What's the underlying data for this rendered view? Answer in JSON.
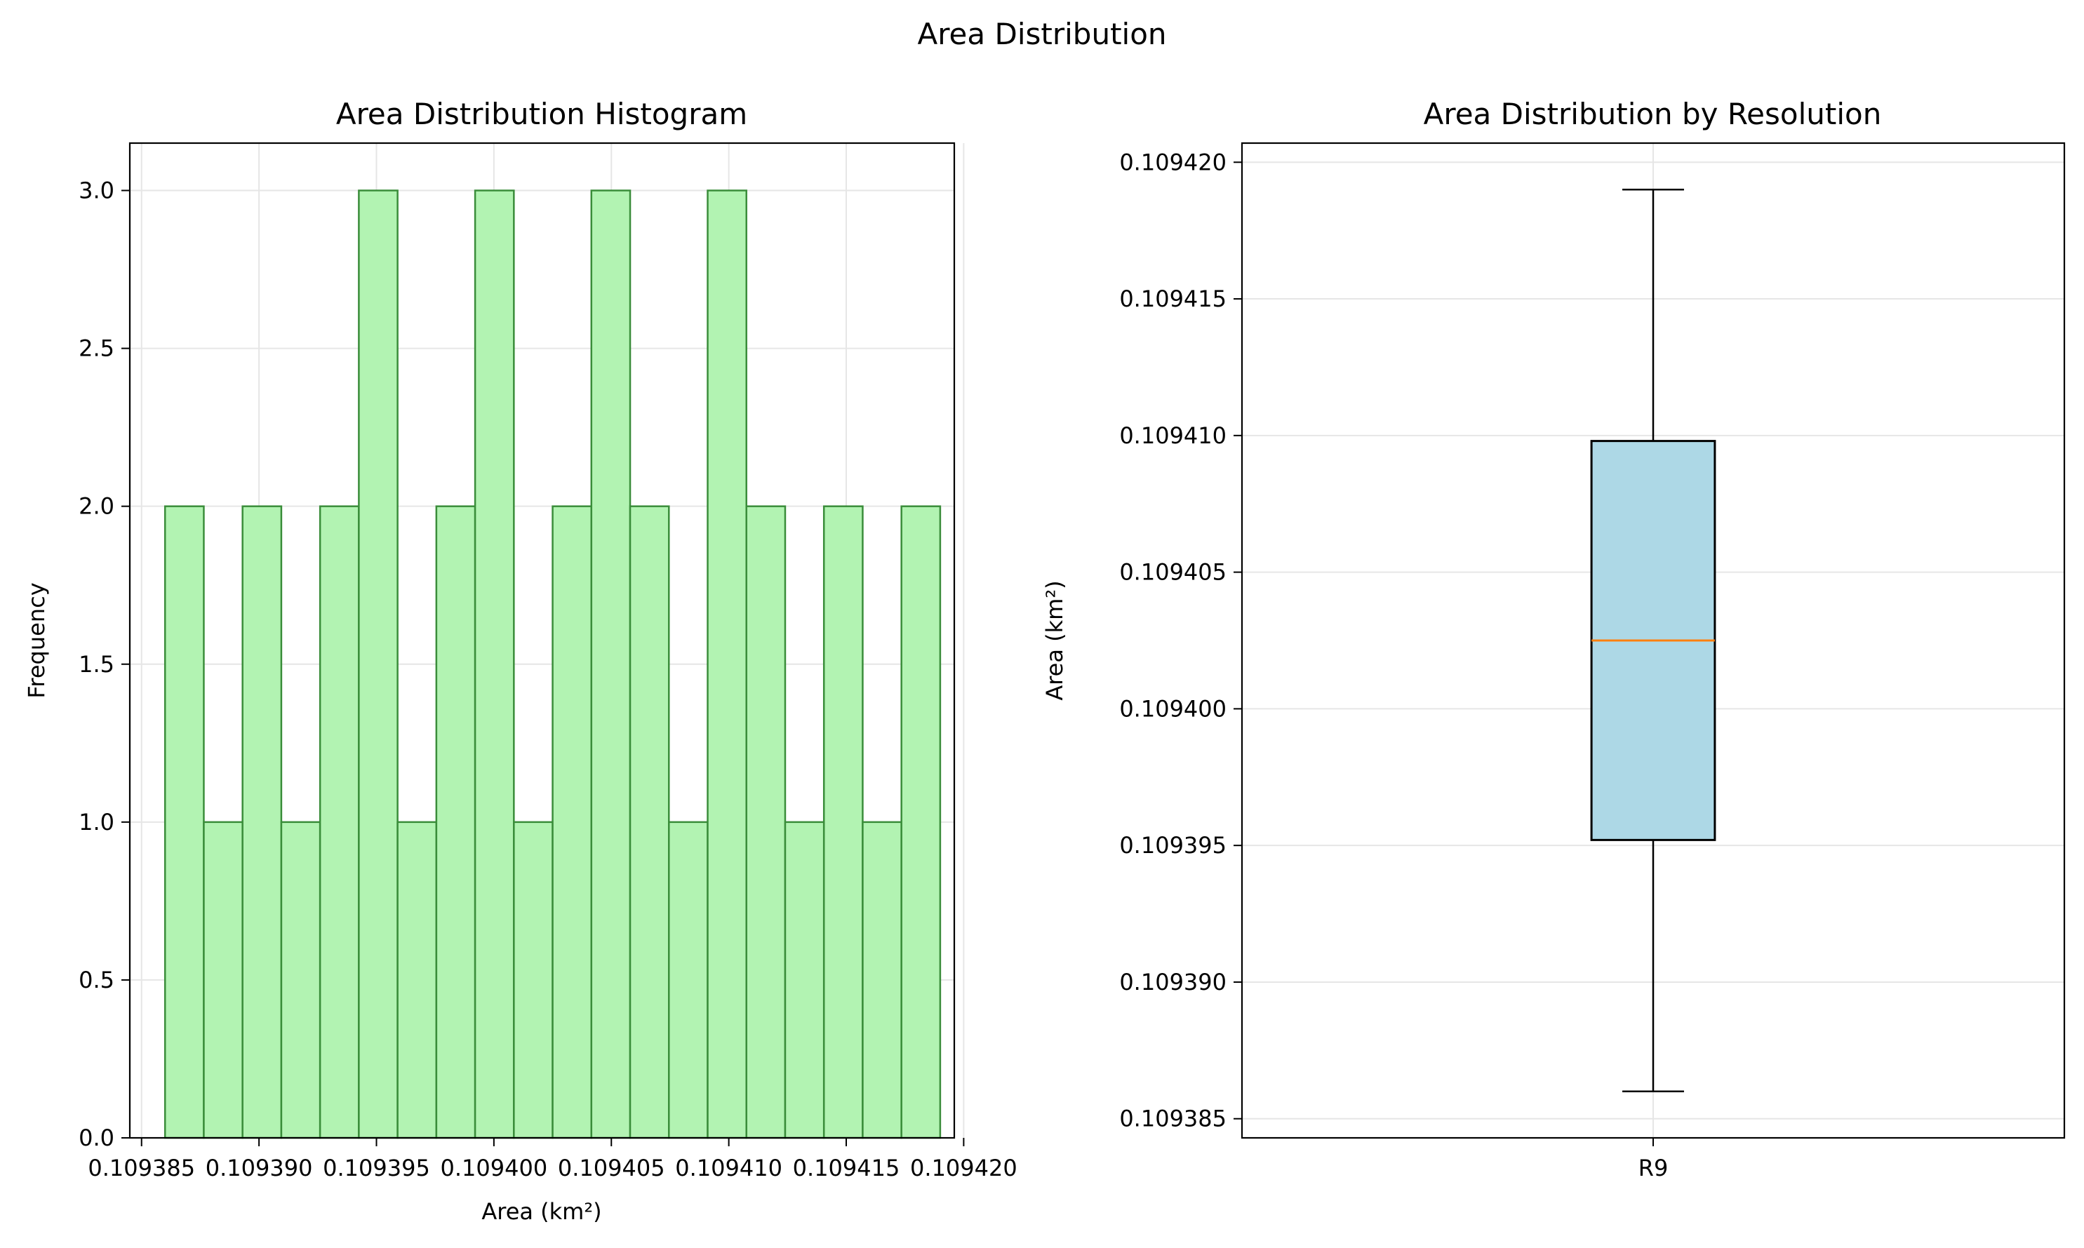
{
  "figure": {
    "suptitle": "Area Distribution"
  },
  "chart_data": [
    {
      "type": "histogram",
      "title": "Area Distribution Histogram",
      "xlabel": "Area (km²)",
      "ylabel": "Frequency",
      "xlim": [
        0.1093845,
        0.1094196
      ],
      "ylim": [
        0,
        3.15
      ],
      "x_ticks": [
        0.109385,
        0.10939,
        0.109395,
        0.1094,
        0.109405,
        0.10941,
        0.109415,
        0.10942
      ],
      "x_tick_labels": [
        "0.109385",
        "0.109390",
        "0.109395",
        "0.109400",
        "0.109405",
        "0.109410",
        "0.109415",
        "0.109420"
      ],
      "y_ticks": [
        0,
        0.5,
        1,
        1.5,
        2,
        2.5,
        3
      ],
      "y_tick_labels": [
        "0.0",
        "0.5",
        "1.0",
        "1.5",
        "2.0",
        "2.5",
        "3.0"
      ],
      "bin_start": 0.109386,
      "bin_width": 1.65e-06,
      "counts": [
        2,
        1,
        2,
        1,
        2,
        3,
        1,
        2,
        3,
        1,
        2,
        3,
        2,
        1,
        3,
        2,
        1,
        2,
        1,
        2
      ],
      "grid": true,
      "colors": {
        "fill": "#b2f3b2",
        "edge": "#3a8d3a"
      }
    },
    {
      "type": "box",
      "title": "Area Distribution by Resolution",
      "xlabel": "",
      "ylabel": "Area (km²)",
      "ylim": [
        0.1093843,
        0.1094207
      ],
      "y_ticks": [
        0.109385,
        0.10939,
        0.109395,
        0.1094,
        0.109405,
        0.10941,
        0.109415,
        0.10942
      ],
      "y_tick_labels": [
        "0.109385",
        "0.109390",
        "0.109395",
        "0.109400",
        "0.109405",
        "0.109410",
        "0.109415",
        "0.109420"
      ],
      "categories": [
        "R9"
      ],
      "boxes": [
        {
          "label": "R9",
          "whisker_low": 0.109386,
          "q1": 0.1093952,
          "median": 0.1094025,
          "q3": 0.1094098,
          "whisker_high": 0.109419
        }
      ],
      "grid": true,
      "colors": {
        "box_fill": "#add8e6",
        "median": "#ff7f0e",
        "edge": "#000000"
      }
    }
  ]
}
